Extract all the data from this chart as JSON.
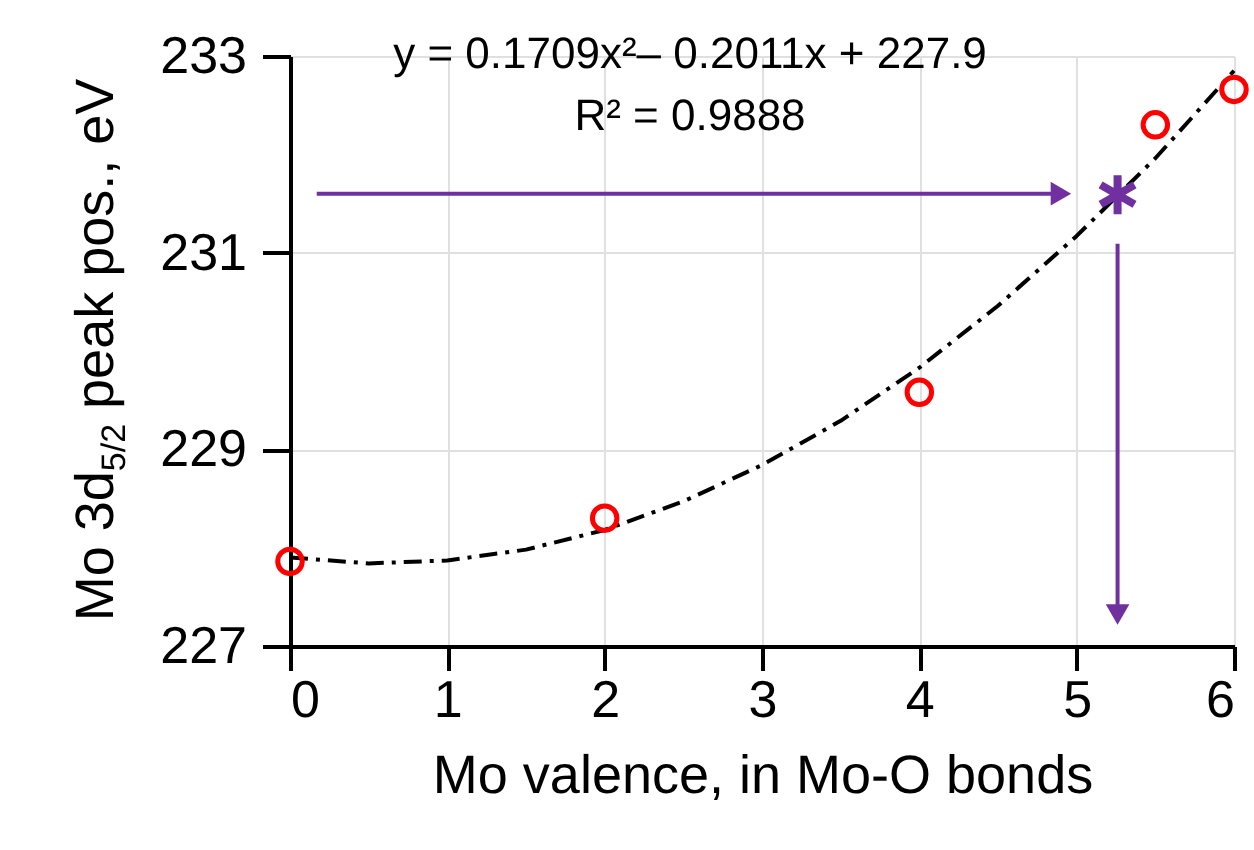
{
  "chart_data": {
    "type": "scatter",
    "xlabel": "Mo valence, in Mo-O bonds",
    "ylabel": "Mo 3d$_{5/2}$ peak pos., eV",
    "annotations": [
      "y = 0.1709x²– 0.2011x + 227.9",
      "R² = 0.9888"
    ],
    "xlim": [
      0,
      6
    ],
    "xticks": [
      0,
      1,
      2,
      3,
      4,
      5,
      6
    ],
    "ylim": [
      227,
      233
    ],
    "yticks": [
      227,
      229,
      231,
      233
    ],
    "grid": true,
    "series": [
      {
        "type": "line",
        "color": "#000000",
        "line_style": "dashed",
        "marker": "none",
        "x": [
          0,
          0.5,
          1,
          1.5,
          2,
          2.5,
          3,
          3.5,
          4,
          4.5,
          5,
          5.5,
          6
        ],
        "values": [
          227.9,
          227.84,
          227.87,
          227.98,
          228.18,
          228.47,
          228.84,
          229.29,
          229.83,
          230.46,
          231.17,
          231.96,
          232.85
        ]
      },
      {
        "color": "#ff0000",
        "marker": "circle",
        "x": [
          0,
          2,
          4,
          5.5,
          6
        ],
        "values": [
          227.86,
          228.3,
          229.58,
          232.3,
          232.66
        ]
      },
      {
        "color": "#7030a0",
        "marker": "cross",
        "x": [
          5.26
        ],
        "values": [
          231.59
        ]
      },
      {
        "type": "line",
        "color": "#7030a0",
        "marker": "triangle",
        "x": [
          0.17,
          4.9
        ],
        "values": [
          231.6,
          231.6
        ]
      },
      {
        "type": "line",
        "color": "#7030a0",
        "marker": "triangle",
        "x": [
          5.26,
          5.26
        ],
        "values": [
          231.09,
          227.32
        ]
      }
    ]
  }
}
